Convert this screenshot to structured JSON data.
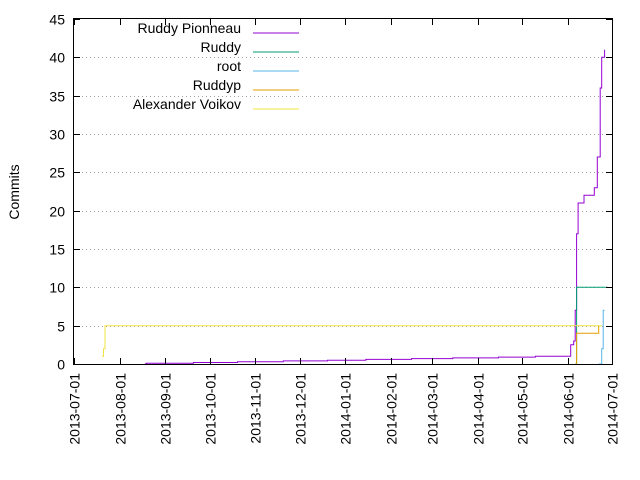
{
  "chart_data": {
    "type": "line",
    "title": "",
    "xlabel": "",
    "ylabel": "Commits",
    "xlim": [
      "2013-07-01",
      "2014-07-01"
    ],
    "ylim": [
      0,
      45
    ],
    "x_ticks": [
      "2013-07-01",
      "2013-08-01",
      "2013-09-01",
      "2013-10-01",
      "2013-11-01",
      "2013-12-01",
      "2014-01-01",
      "2014-02-01",
      "2014-03-01",
      "2014-04-01",
      "2014-05-01",
      "2014-06-01",
      "2014-07-01"
    ],
    "y_ticks": [
      0,
      5,
      10,
      15,
      20,
      25,
      30,
      35,
      40,
      45
    ],
    "grid": "horizontal-dotted",
    "legend_position": "top-left",
    "series": [
      {
        "name": "Ruddy Pionneau",
        "color": "#9400d3",
        "points": [
          [
            "2013-08-18",
            0
          ],
          [
            "2013-08-19",
            0.1
          ],
          [
            "2013-09-20",
            0.2
          ],
          [
            "2013-10-20",
            0.3
          ],
          [
            "2013-11-20",
            0.4
          ],
          [
            "2013-12-20",
            0.5
          ],
          [
            "2014-01-15",
            0.6
          ],
          [
            "2014-02-15",
            0.7
          ],
          [
            "2014-03-15",
            0.8
          ],
          [
            "2014-04-15",
            0.9
          ],
          [
            "2014-05-10",
            1
          ],
          [
            "2014-06-03",
            2.5
          ],
          [
            "2014-06-05",
            3
          ],
          [
            "2014-06-06",
            7
          ],
          [
            "2014-06-07",
            17
          ],
          [
            "2014-06-08",
            21
          ],
          [
            "2014-06-12",
            22
          ],
          [
            "2014-06-19",
            23
          ],
          [
            "2014-06-21",
            27
          ],
          [
            "2014-06-23",
            36
          ],
          [
            "2014-06-24",
            40
          ],
          [
            "2014-06-26",
            41
          ]
        ]
      },
      {
        "name": "Ruddy",
        "color": "#009e73",
        "points": [
          [
            "2014-06-06",
            0
          ],
          [
            "2014-06-07",
            10
          ],
          [
            "2014-06-28",
            10
          ]
        ]
      },
      {
        "name": "root",
        "color": "#56b4e9",
        "points": [
          [
            "2014-06-22",
            0
          ],
          [
            "2014-06-24",
            2
          ],
          [
            "2014-06-25",
            7
          ],
          [
            "2014-06-26",
            7
          ]
        ]
      },
      {
        "name": "Ruddyp",
        "color": "#e69f00",
        "points": [
          [
            "2014-06-06",
            0
          ],
          [
            "2014-06-07",
            4
          ],
          [
            "2014-06-21",
            4
          ],
          [
            "2014-06-22",
            5
          ]
        ]
      },
      {
        "name": "Alexander Voikov",
        "color": "#f0e442",
        "points": [
          [
            "2013-07-20",
            1
          ],
          [
            "2013-07-21",
            2
          ],
          [
            "2013-07-22",
            5
          ],
          [
            "2014-06-24",
            5
          ]
        ]
      }
    ]
  }
}
